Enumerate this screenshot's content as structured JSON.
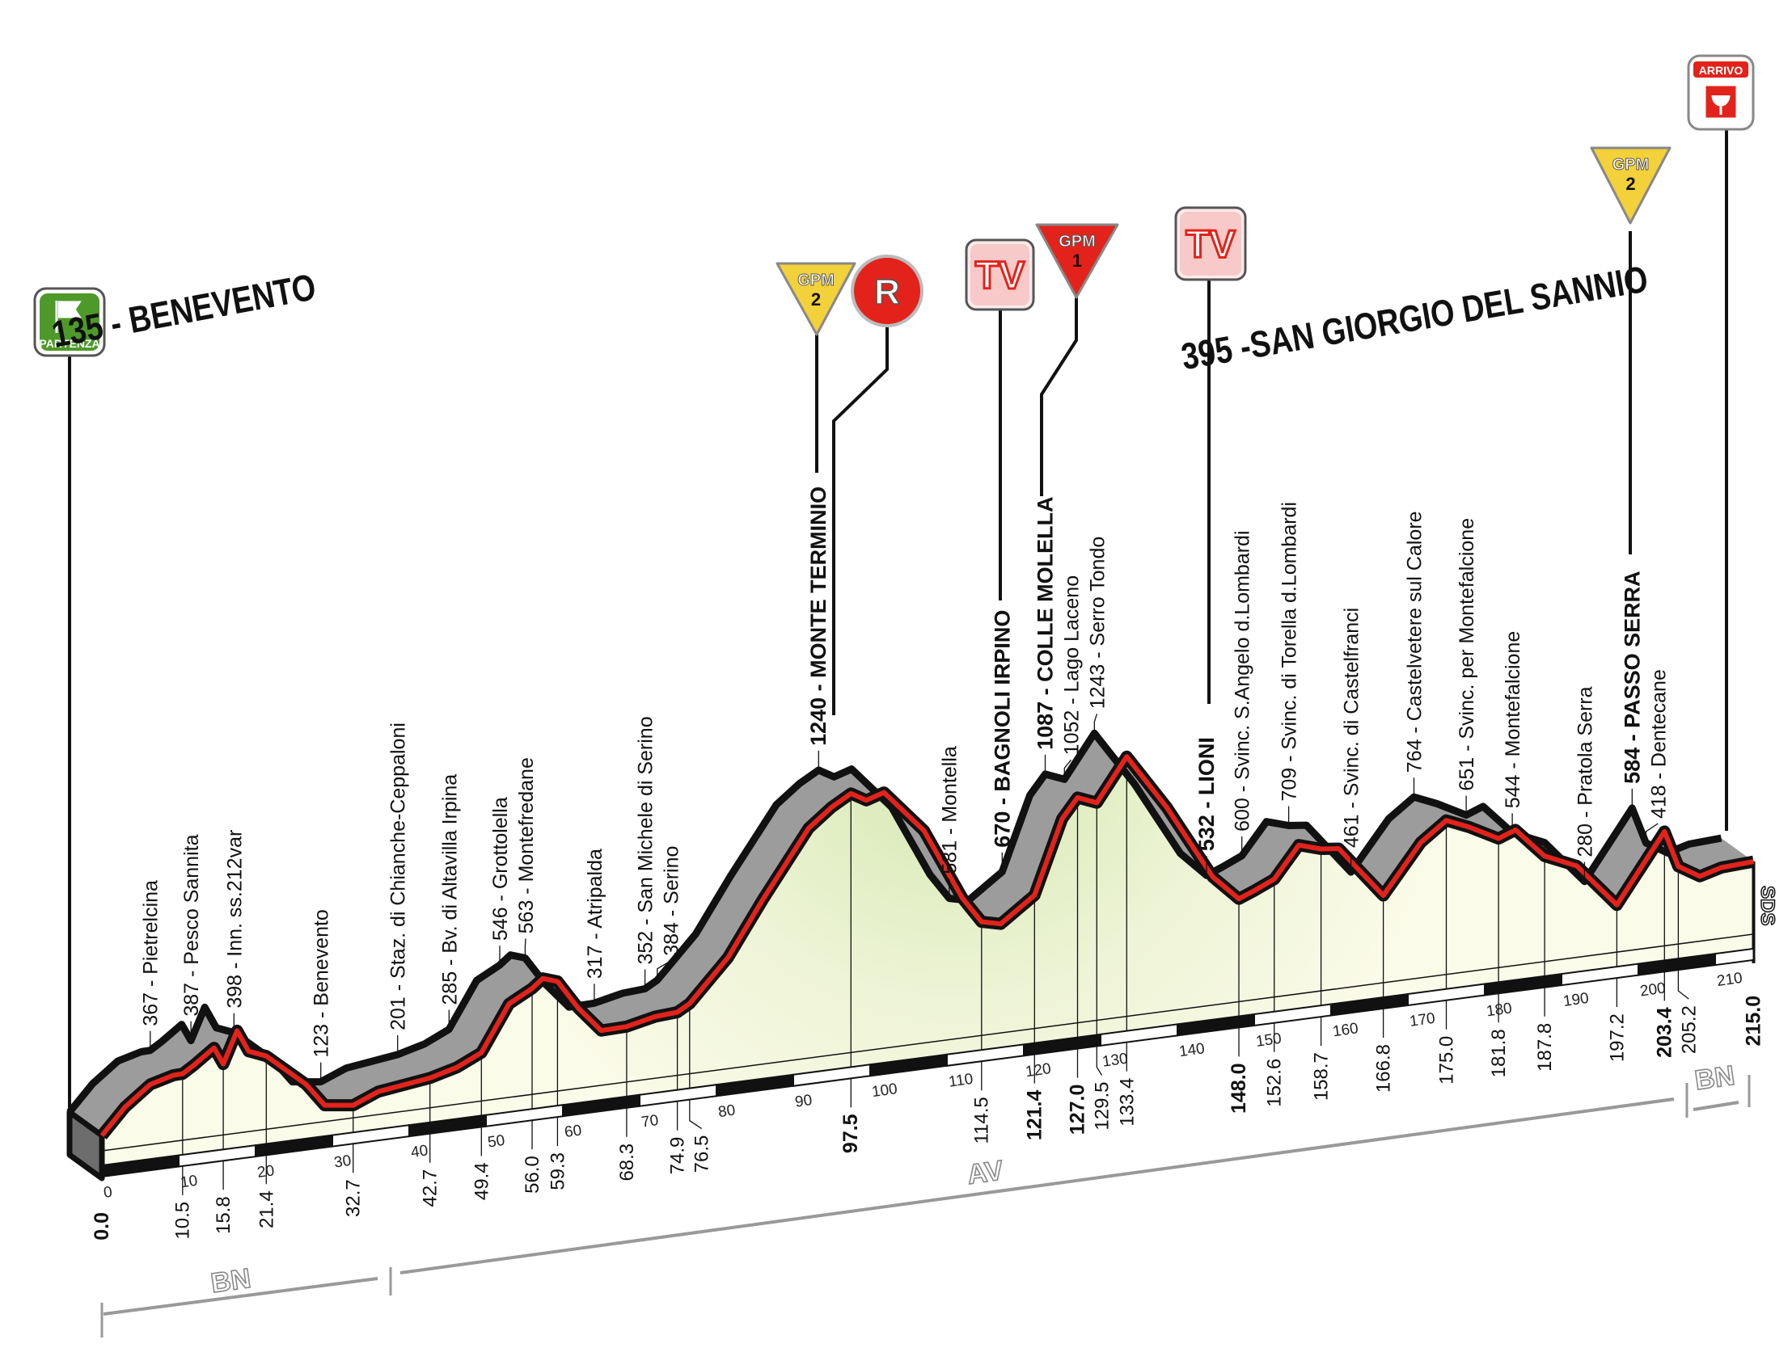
{
  "start": {
    "elev": "135",
    "name": "BENEVENTO",
    "title": "135 - BENEVENTO",
    "badge": "PARTENZA"
  },
  "finish": {
    "elev": "395",
    "name": "SAN GIORGIO DEL SANNIO",
    "title": "395 -SAN GIORGIO DEL SANNIO",
    "badge": "ARRIVO"
  },
  "markers": {
    "gpm_label": "GPM",
    "gpm_terminio_cat": "2",
    "gpm_molella_cat": "1",
    "gpm_serra_cat": "2",
    "sprint_label": "R",
    "tv_label": "TV"
  },
  "provinces": [
    {
      "label": "BN",
      "from_km": 0.0,
      "to_km": 32.7
    },
    {
      "label": "AV",
      "from_km": 32.7,
      "to_km": 205.2
    },
    {
      "label": "BN",
      "from_km": 205.2,
      "to_km": 215.0
    }
  ],
  "sds_label": "SDS",
  "colors": {
    "road": "#e3231b",
    "band": "#9c9c9c",
    "fill_low": "#fbfbe9",
    "fill_high": "#d3e6ad",
    "start_badge": "#4d9a2a",
    "finish_badge": "#e3231b",
    "gpm2": "#f2d13a",
    "gpm1": "#e3231b"
  },
  "chart_data": {
    "type": "area",
    "xlabel": "",
    "ylabel": "",
    "xlim": [
      0,
      215
    ],
    "x_ticks": [
      0,
      10,
      20,
      30,
      40,
      50,
      60,
      70,
      80,
      90,
      100,
      110,
      120,
      130,
      140,
      150,
      160,
      170,
      180,
      190,
      200,
      210
    ],
    "profile": [
      [
        0,
        135
      ],
      [
        3,
        250
      ],
      [
        6.3,
        338
      ],
      [
        9.3,
        366
      ],
      [
        10.5,
        367
      ],
      [
        12,
        400
      ],
      [
        14.6,
        466
      ],
      [
        15.8,
        387
      ],
      [
        17.6,
        530
      ],
      [
        19.1,
        430
      ],
      [
        21.4,
        398
      ],
      [
        26.6,
        245
      ],
      [
        29,
        140
      ],
      [
        32.7,
        123
      ],
      [
        36,
        170
      ],
      [
        42.7,
        201
      ],
      [
        46.2,
        233
      ],
      [
        49.4,
        285
      ],
      [
        53,
        490
      ],
      [
        56,
        546
      ],
      [
        57.4,
        585
      ],
      [
        59.3,
        563
      ],
      [
        62,
        430
      ],
      [
        65,
        314
      ],
      [
        68.3,
        317
      ],
      [
        72,
        345
      ],
      [
        74.9,
        352
      ],
      [
        76.5,
        384
      ],
      [
        81.5,
        570
      ],
      [
        86,
        810
      ],
      [
        92,
        1108
      ],
      [
        95,
        1190
      ],
      [
        97.5,
        1240
      ],
      [
        99.5,
        1200
      ],
      [
        101.8,
        1225
      ],
      [
        107,
        1029
      ],
      [
        112,
        700
      ],
      [
        114.5,
        581
      ],
      [
        117,
        560
      ],
      [
        121.4,
        670
      ],
      [
        125,
        1000
      ],
      [
        127,
        1087
      ],
      [
        129.5,
        1052
      ],
      [
        133.4,
        1243
      ],
      [
        138.6,
        990
      ],
      [
        144.6,
        647
      ],
      [
        148,
        532
      ],
      [
        150,
        560
      ],
      [
        152.6,
        600
      ],
      [
        155.8,
        740
      ],
      [
        158.7,
        709
      ],
      [
        161,
        700
      ],
      [
        166.8,
        461
      ],
      [
        171.7,
        680
      ],
      [
        175,
        764
      ],
      [
        178,
        720
      ],
      [
        181.8,
        651
      ],
      [
        184,
        680
      ],
      [
        187.8,
        544
      ],
      [
        192,
        480
      ],
      [
        197.2,
        280
      ],
      [
        203.4,
        584
      ],
      [
        205.2,
        418
      ],
      [
        208,
        360
      ],
      [
        210.8,
        387
      ],
      [
        215,
        395
      ]
    ],
    "waypoints": [
      {
        "km": "0.0",
        "elev": 135,
        "name": "",
        "bold": true
      },
      {
        "km": "10.5",
        "elev": 367,
        "name": "Pietrelcina",
        "bold": false
      },
      {
        "km": "15.8",
        "elev": 387,
        "name": "Pesco Sannita",
        "bold": false
      },
      {
        "km": "21.4",
        "elev": 398,
        "name": "Inn. ss.212var",
        "bold": false
      },
      {
        "km": "32.7",
        "elev": 123,
        "name": "Benevento",
        "bold": false
      },
      {
        "km": "42.7",
        "elev": 201,
        "name": "Staz. di Chianche-Ceppaloni",
        "bold": false
      },
      {
        "km": "49.4",
        "elev": 285,
        "name": "Bv. di Altavilla Irpina",
        "bold": false
      },
      {
        "km": "56.0",
        "elev": 546,
        "name": "Grottolella",
        "bold": false
      },
      {
        "km": "59.3",
        "elev": 563,
        "name": "Montefredane",
        "bold": false
      },
      {
        "km": "68.3",
        "elev": 317,
        "name": "Atripalda",
        "bold": false
      },
      {
        "km": "74.9",
        "elev": 352,
        "name": "San Michele di Serino",
        "bold": false
      },
      {
        "km": "76.5",
        "elev": 384,
        "name": "Serino",
        "bold": false
      },
      {
        "km": "97.5",
        "elev": 1240,
        "name": "MONTE TERMINIO",
        "bold": true
      },
      {
        "km": "114.5",
        "elev": 581,
        "name": "Montella",
        "bold": false
      },
      {
        "km": "121.4",
        "elev": 670,
        "name": "BAGNOLI IRPINO",
        "bold": true
      },
      {
        "km": "127.0",
        "elev": 1087,
        "name": "COLLE MOLELLA",
        "bold": true
      },
      {
        "km": "129.5",
        "elev": 1052,
        "name": "Lago Laceno",
        "bold": false
      },
      {
        "km": "133.4",
        "elev": 1243,
        "name": "Serro Tondo",
        "bold": false
      },
      {
        "km": "148.0",
        "elev": 532,
        "name": "LIONI",
        "bold": true
      },
      {
        "km": "152.6",
        "elev": 600,
        "name": "Svinc. S.Angelo d.Lombardi",
        "bold": false
      },
      {
        "km": "158.7",
        "elev": 709,
        "name": "Svinc. di Torella d.Lombardi",
        "bold": false
      },
      {
        "km": "166.8",
        "elev": 461,
        "name": "Svinc. di Castelfranci",
        "bold": false
      },
      {
        "km": "175.0",
        "elev": 764,
        "name": "Castelvetere sul Calore",
        "bold": false
      },
      {
        "km": "181.8",
        "elev": 651,
        "name": "Svinc. per Montefalcione",
        "bold": false
      },
      {
        "km": "187.8",
        "elev": 544,
        "name": "Montefalcione",
        "bold": false
      },
      {
        "km": "197.2",
        "elev": 280,
        "name": "Pratola Serra",
        "bold": false
      },
      {
        "km": "203.4",
        "elev": 584,
        "name": "PASSO SERRA",
        "bold": true
      },
      {
        "km": "205.2",
        "elev": 418,
        "name": "Dentecane",
        "bold": false
      },
      {
        "km": "215.0",
        "elev": 395,
        "name": "",
        "bold": true
      }
    ]
  }
}
